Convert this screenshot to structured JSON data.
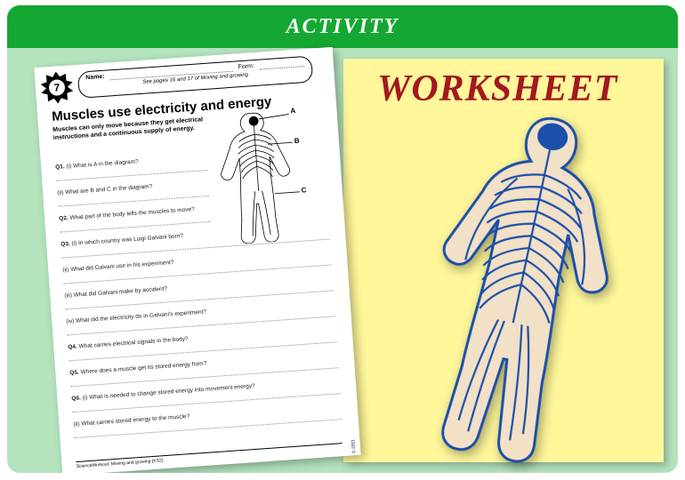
{
  "header": {
    "label": "ACTIVITY"
  },
  "worksheet_label": "WORKSHEET",
  "colors": {
    "green_header": "#14a832",
    "green_body": "#b4e3be",
    "yellow_paper": "#fff79a",
    "title_red": "#a31820",
    "nerve_blue": "#1b4fa8",
    "nerve_skin": "#f2e0c7"
  },
  "sheet": {
    "badge_number": "7",
    "name_label": "Name:",
    "form_label": "Form:",
    "ref_line": "See pages 16 and 17 of Moving and growing",
    "title": "Muscles use electricity and energy",
    "intro": "Muscles can only move because they get electrical instructions and a continuous supply of energy.",
    "diagram_labels": {
      "a": "A",
      "b": "B",
      "c": "C"
    },
    "questions": [
      {
        "label": "Q1.",
        "text": "(i) What is A in the diagram?",
        "short": true
      },
      {
        "label": "",
        "text": "(ii) What are B and C in the diagram?",
        "short": true
      },
      {
        "label": "Q2.",
        "text": "What part of the body tells the muscles to move?",
        "short": true
      },
      {
        "label": "Q3.",
        "text": "(i) In which country was Luigi Galvani born?",
        "short": false
      },
      {
        "label": "",
        "text": "(ii) What did Galvani use in his experiment?",
        "short": false
      },
      {
        "label": "",
        "text": "(iii) What did Galvani make by accident?",
        "short": false
      },
      {
        "label": "",
        "text": "(iv) What did the electricity do in Galvani's experiment?",
        "short": false
      },
      {
        "label": "Q4.",
        "text": "What carries electrical signals in the body?",
        "short": false
      },
      {
        "label": "Q5.",
        "text": "Where does a muscle get its stored energy from?",
        "short": false
      },
      {
        "label": "Q6.",
        "text": "(i) What is needed to change stored energy into movement energy?",
        "short": false
      },
      {
        "label": "",
        "text": "(ii) What carries stored energy to the muscle?",
        "short": false
      }
    ],
    "footer": "ScienceWorkout: Moving and growing (KS2)",
    "copyright": "© 2011"
  }
}
